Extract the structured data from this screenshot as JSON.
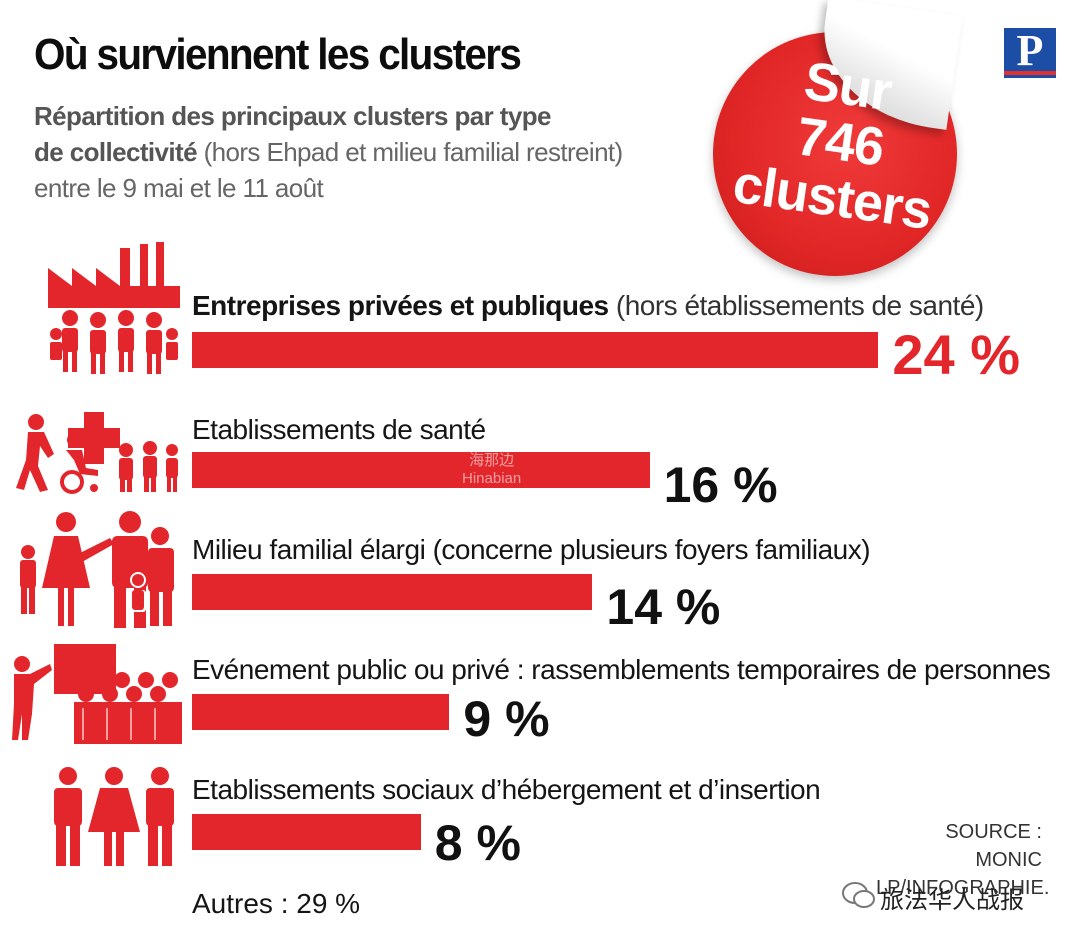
{
  "title": "Où surviennent les clusters",
  "subtitle": {
    "bold": "Répartition des principaux clusters par type de collectivité",
    "line1": "Répartition des principaux clusters par type",
    "line2_bold": "de collectivité",
    "line2_rest": " (hors Ehpad et milieu familial restreint)",
    "line3": "entre le 9 mai et le 11 août"
  },
  "badge": {
    "line1": "Sur",
    "line2": "746",
    "line3": "clusters"
  },
  "logo": "P",
  "watermark": {
    "cn": "海那边",
    "en": "Hinabian"
  },
  "chart_data": {
    "type": "bar",
    "orientation": "horizontal",
    "unit": "%",
    "categories": [
      "Entreprises privées et publiques (hors établissements de santé)",
      "Etablissements de santé",
      "Milieu familial élargi (concerne plusieurs foyers familiaux)",
      "Evénement public ou privé : rassemblements temporaires de personnes",
      "Etablissements sociaux d’hébergement et d’insertion"
    ],
    "values": [
      24,
      16,
      14,
      9,
      8
    ],
    "bar_color": "#e3262b",
    "rows": [
      {
        "label_main": "Entreprises privées et publiques",
        "label_note": " (hors établissements de santé)",
        "value": 24,
        "pct_label": "24 %",
        "icon": "factory-workers-icon"
      },
      {
        "label_main": "Etablissements de santé",
        "label_note": "",
        "value": 16,
        "pct_label": "16 %",
        "icon": "healthcare-icon"
      },
      {
        "label_main": "Milieu familial élargi (concerne plusieurs foyers familiaux)",
        "label_note": "",
        "value": 14,
        "pct_label": "14 %",
        "icon": "family-icon"
      },
      {
        "label_main": "Evénement public ou privé : rassemblements temporaires de personnes",
        "label_note": "",
        "value": 9,
        "pct_label": "9 %",
        "icon": "audience-presentation-icon"
      },
      {
        "label_main": "Etablissements sociaux d’hébergement et d’insertion",
        "label_note": "",
        "value": 8,
        "pct_label": "8 %",
        "icon": "people-group-icon"
      }
    ],
    "other": {
      "label": "Autres : 29 %",
      "value": 29
    }
  },
  "source": {
    "line1": "SOURCE : MONIC",
    "line2": "LP/INFOGRAPHIE."
  },
  "credit": "旅法华人战报"
}
